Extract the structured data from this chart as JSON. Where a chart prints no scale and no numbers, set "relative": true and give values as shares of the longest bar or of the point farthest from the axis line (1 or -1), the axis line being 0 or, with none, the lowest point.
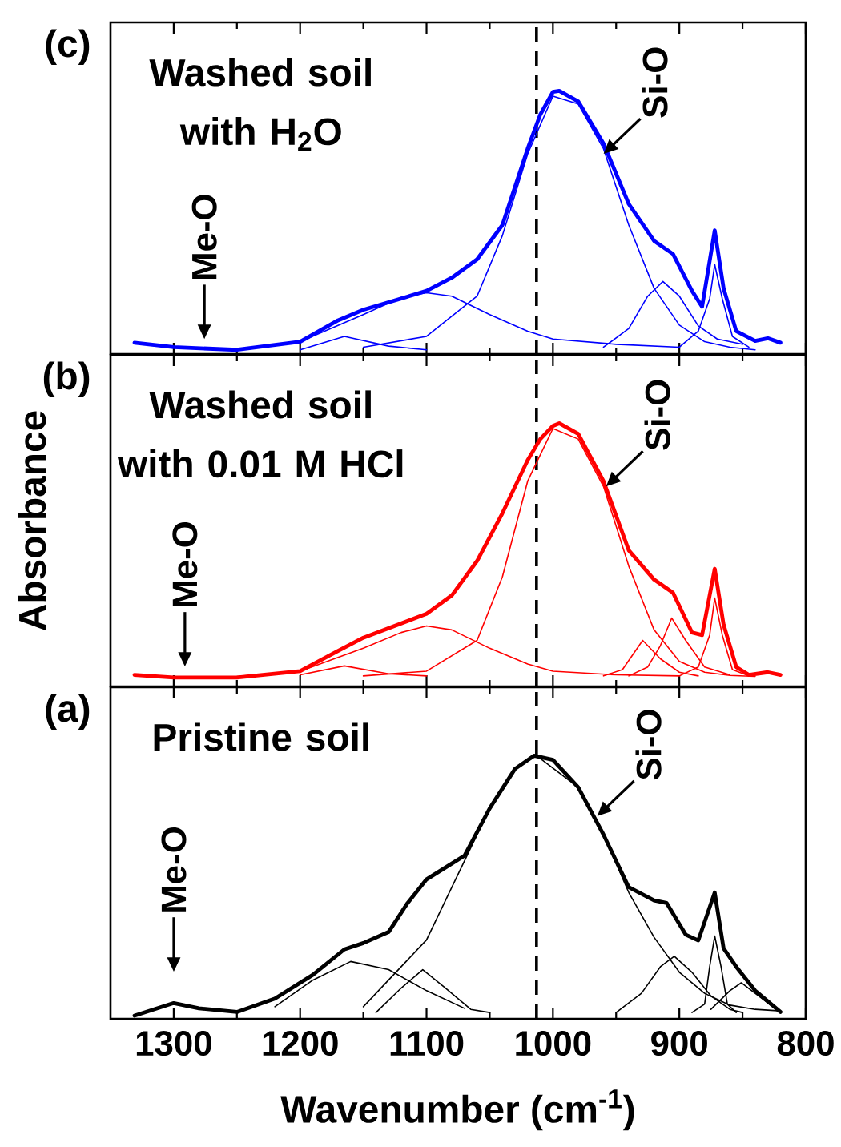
{
  "chart_data": [
    {
      "type": "line",
      "relative": true,
      "marker": "none",
      "tick_labels": false,
      "xlim": [
        1350,
        800
      ],
      "xticks": [
        1300,
        1200,
        1100,
        1000,
        900,
        800
      ],
      "annotations": [
        "(c)",
        "Washed soil with H$_{2}$O",
        {
          "text": "Si-O",
          "x": 960,
          "y": 0.76
        },
        "Me-O"
      ],
      "ref_lines": [
        {
          "axis": "x",
          "value": 1013,
          "color": "#000000",
          "line_style": "dashed"
        }
      ],
      "series": [
        {
          "type": "line",
          "color": "#0000ff",
          "x": [
            1331,
            1300,
            1250,
            1200,
            1170,
            1150,
            1100,
            1080,
            1060,
            1040,
            1020,
            1010,
            1000,
            995,
            980,
            960,
            940,
            920,
            905,
            890,
            882,
            872,
            865,
            855,
            840,
            830,
            820
          ],
          "values": [
            0.043,
            0.026,
            0.016,
            0.047,
            0.128,
            0.168,
            0.24,
            0.29,
            0.36,
            0.49,
            0.78,
            0.91,
            0.996,
            1.0,
            0.96,
            0.8,
            0.57,
            0.43,
            0.38,
            0.24,
            0.18,
            0.47,
            0.25,
            0.087,
            0.05,
            0.06,
            0.043
          ]
        },
        {
          "type": "line",
          "color": "#0000ff",
          "x": [
            1150,
            1100,
            1060,
            1040,
            1020,
            1000,
            980,
            960,
            940,
            920,
            900,
            880,
            860,
            840
          ],
          "values": [
            0.026,
            0.067,
            0.22,
            0.45,
            0.76,
            0.98,
            0.95,
            0.78,
            0.49,
            0.25,
            0.11,
            0.047,
            0.026,
            0.016
          ]
        },
        {
          "type": "line",
          "color": "#0000ff",
          "x": [
            1250,
            1200,
            1150,
            1120,
            1100,
            1080,
            1050,
            1020,
            1000,
            950,
            900
          ],
          "values": [
            0.016,
            0.047,
            0.15,
            0.215,
            0.233,
            0.22,
            0.15,
            0.087,
            0.057,
            0.037,
            0.026
          ]
        },
        {
          "type": "line",
          "color": "#0000ff",
          "x": [
            1200,
            1165,
            1130,
            1100
          ],
          "values": [
            0.016,
            0.067,
            0.03,
            0.016
          ]
        },
        {
          "type": "line",
          "color": "#0000ff",
          "x": [
            960,
            940,
            925,
            913,
            900,
            885,
            870,
            850
          ],
          "values": [
            0.026,
            0.097,
            0.22,
            0.276,
            0.22,
            0.107,
            0.057,
            0.037
          ]
        },
        {
          "type": "line",
          "color": "#0000ff",
          "x": [
            900,
            885,
            876,
            872,
            866,
            858,
            845
          ],
          "values": [
            0.026,
            0.087,
            0.21,
            0.34,
            0.21,
            0.067,
            0.026
          ]
        }
      ]
    },
    {
      "type": "line",
      "relative": true,
      "marker": "none",
      "tick_labels": false,
      "xlim": [
        1350,
        800
      ],
      "xticks": [
        1300,
        1200,
        1100,
        1000,
        900,
        800
      ],
      "ylabel": "Absorbance",
      "annotations": [
        "(b)",
        "Washed soil with 0.01 M HCl",
        {
          "text": "Si-O",
          "x": 958,
          "y": 0.76
        },
        "Me-O"
      ],
      "ref_lines": [
        {
          "axis": "x",
          "value": 1013,
          "color": "#000000",
          "line_style": "dashed"
        }
      ],
      "series": [
        {
          "type": "line",
          "color": "#ff0000",
          "x": [
            1331,
            1300,
            1250,
            1200,
            1170,
            1150,
            1100,
            1080,
            1060,
            1040,
            1020,
            1010,
            1000,
            995,
            980,
            960,
            940,
            920,
            905,
            890,
            882,
            872,
            865,
            855,
            845,
            830,
            820
          ],
          "values": [
            0.044,
            0.034,
            0.034,
            0.058,
            0.135,
            0.185,
            0.276,
            0.346,
            0.477,
            0.658,
            0.86,
            0.94,
            0.99,
            1.0,
            0.96,
            0.78,
            0.517,
            0.406,
            0.356,
            0.205,
            0.195,
            0.447,
            0.235,
            0.074,
            0.044,
            0.054,
            0.044
          ]
        },
        {
          "type": "line",
          "color": "#ff0000",
          "x": [
            1150,
            1100,
            1060,
            1040,
            1020,
            1000,
            980,
            960,
            940,
            920,
            900,
            880,
            860,
            840
          ],
          "values": [
            0.04,
            0.058,
            0.175,
            0.416,
            0.78,
            0.98,
            0.94,
            0.76,
            0.457,
            0.215,
            0.095,
            0.054,
            0.042,
            0.038
          ]
        },
        {
          "type": "line",
          "color": "#ff0000",
          "x": [
            1250,
            1200,
            1150,
            1120,
            1100,
            1080,
            1050,
            1020,
            1000,
            950,
            900
          ],
          "values": [
            0.038,
            0.058,
            0.145,
            0.205,
            0.23,
            0.215,
            0.145,
            0.085,
            0.058,
            0.044,
            0.04
          ]
        },
        {
          "type": "line",
          "color": "#ff0000",
          "x": [
            1200,
            1165,
            1130,
            1100
          ],
          "values": [
            0.044,
            0.078,
            0.048,
            0.04
          ]
        },
        {
          "type": "line",
          "color": "#ff0000",
          "x": [
            960,
            945,
            929,
            915,
            900,
            885
          ],
          "values": [
            0.04,
            0.064,
            0.175,
            0.105,
            0.054,
            0.04
          ]
        },
        {
          "type": "line",
          "color": "#ff0000",
          "x": [
            940,
            925,
            915,
            906,
            895,
            880,
            860
          ],
          "values": [
            0.04,
            0.074,
            0.155,
            0.26,
            0.175,
            0.074,
            0.044
          ]
        },
        {
          "type": "line",
          "color": "#ff0000",
          "x": [
            900,
            885,
            876,
            872,
            866,
            858,
            845
          ],
          "values": [
            0.04,
            0.074,
            0.195,
            0.336,
            0.195,
            0.064,
            0.04
          ]
        }
      ]
    },
    {
      "type": "line",
      "relative": true,
      "marker": "none",
      "tick_labels": "x",
      "xlim": [
        1350,
        800
      ],
      "xticks": [
        1300,
        1200,
        1100,
        1000,
        900,
        800
      ],
      "xlabel": "Wavenumber (cm$^{-1}$)",
      "annotations": [
        "(a)",
        "Pristine soil",
        {
          "text": "Si-O",
          "x": 965,
          "y": 0.77
        },
        "Me-O"
      ],
      "ref_lines": [
        {
          "axis": "x",
          "value": 1013,
          "color": "#000000",
          "line_style": "dashed"
        }
      ],
      "series": [
        {
          "type": "line",
          "color": "#000000",
          "x": [
            1331,
            1300,
            1280,
            1250,
            1220,
            1190,
            1165,
            1150,
            1130,
            1115,
            1100,
            1080,
            1070,
            1050,
            1030,
            1015,
            1000,
            980,
            960,
            940,
            920,
            910,
            895,
            885,
            872,
            865,
            855,
            840,
            820
          ],
          "values": [
            0.012,
            0.06,
            0.04,
            0.026,
            0.077,
            0.167,
            0.264,
            0.288,
            0.33,
            0.44,
            0.53,
            0.59,
            0.62,
            0.8,
            0.95,
            1.0,
            0.984,
            0.88,
            0.7,
            0.5,
            0.45,
            0.44,
            0.32,
            0.298,
            0.48,
            0.268,
            0.198,
            0.107,
            0.026
          ]
        },
        {
          "color": "#000000",
          "x": [
            1220,
            1190,
            1160,
            1130,
            1100,
            1070
          ],
          "values": [
            0.046,
            0.147,
            0.218,
            0.187,
            0.107,
            0.04
          ]
        },
        {
          "type": "line",
          "color": "#000000",
          "x": [
            1140,
            1120,
            1103,
            1085,
            1065,
            1050
          ],
          "values": [
            0.024,
            0.117,
            0.187,
            0.117,
            0.036,
            0.024
          ]
        },
        {
          "type": "line",
          "color": "#000000",
          "x": [
            1150,
            1100,
            1070,
            1050,
            1030,
            1013,
            980,
            960,
            940,
            920,
            900,
            880,
            860,
            840,
            820
          ],
          "values": [
            0.046,
            0.3,
            0.6,
            0.8,
            0.95,
            1.0,
            0.88,
            0.7,
            0.48,
            0.31,
            0.177,
            0.097,
            0.052,
            0.036,
            0.03
          ]
        },
        {
          "type": "line",
          "color": "#000000",
          "x": [
            950,
            930,
            915,
            904,
            890,
            875,
            860,
            850
          ],
          "values": [
            0.024,
            0.097,
            0.198,
            0.238,
            0.177,
            0.087,
            0.036,
            0.024
          ]
        },
        {
          "type": "line",
          "color": "#000000",
          "x": [
            890,
            880,
            876,
            872,
            867,
            862,
            855
          ],
          "values": [
            0.024,
            0.056,
            0.198,
            0.315,
            0.198,
            0.056,
            0.024
          ]
        },
        {
          "type": "line",
          "color": "#000000",
          "x": [
            875,
            860,
            851,
            840,
            825,
            820
          ],
          "values": [
            0.036,
            0.107,
            0.137,
            0.097,
            0.042,
            0.03
          ]
        }
      ]
    }
  ]
}
